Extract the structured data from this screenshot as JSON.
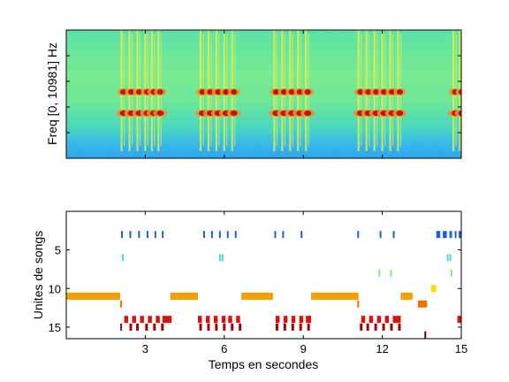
{
  "chart_data": [
    {
      "type": "heatmap",
      "ylabel": "Freq [0, 10981] Hz",
      "xlim": [
        0,
        15
      ],
      "ylim": [
        0,
        10981
      ],
      "colormap": "jet",
      "call_bouts": [
        {
          "calls": [
            2.1,
            2.4,
            2.7,
            3.0,
            3.25,
            3.5
          ]
        },
        {
          "calls": [
            5.1,
            5.4,
            5.7,
            6.0,
            6.3
          ]
        },
        {
          "calls": [
            7.9,
            8.2,
            8.5,
            8.8,
            9.1
          ]
        },
        {
          "calls": [
            11.1,
            11.4,
            11.7,
            12.0,
            12.3,
            12.6
          ]
        },
        {
          "calls": [
            14.7,
            14.95
          ]
        }
      ]
    },
    {
      "type": "scatter",
      "xlabel": "Temps en secondes",
      "ylabel": "Unites de songs",
      "xlim": [
        0,
        15
      ],
      "ylim": [
        0,
        16.5
      ],
      "xticks": [
        "3",
        "6",
        "9",
        "12",
        "15"
      ],
      "yticks": [
        "5",
        "10",
        "15"
      ],
      "rows": [
        {
          "unit": 3,
          "color": "#1f5fdc",
          "segments": [
            [
              2.08,
              2.13
            ],
            [
              2.4,
              2.45
            ],
            [
              2.73,
              2.78
            ],
            [
              3.05,
              3.1
            ],
            [
              3.35,
              3.4
            ],
            [
              3.63,
              3.68
            ],
            [
              5.2,
              5.25
            ],
            [
              5.5,
              5.55
            ],
            [
              5.8,
              5.85
            ],
            [
              6.1,
              6.15
            ],
            [
              6.4,
              6.45
            ],
            [
              7.9,
              7.95
            ],
            [
              8.2,
              8.25
            ],
            [
              8.9,
              8.95
            ],
            [
              11.05,
              11.1
            ],
            [
              11.9,
              11.95
            ],
            [
              12.4,
              12.45
            ],
            [
              14.05,
              14.2
            ],
            [
              14.3,
              14.45
            ],
            [
              14.55,
              14.65
            ],
            [
              14.75,
              14.8
            ],
            [
              14.9,
              15.0
            ]
          ]
        },
        {
          "unit": 6,
          "color": "#40e0d0",
          "segments": [
            [
              2.12,
              2.18
            ],
            [
              5.8,
              5.85
            ],
            [
              5.9,
              5.95
            ],
            [
              14.45,
              14.5
            ],
            [
              14.55,
              14.6
            ]
          ]
        },
        {
          "unit": 8,
          "color": "#80f080",
          "segments": [
            [
              11.85,
              11.92
            ],
            [
              12.3,
              12.37
            ],
            [
              14.6,
              14.66
            ]
          ]
        },
        {
          "unit": 10,
          "color": "#f5e000",
          "segments": [
            [
              13.85,
              14.05
            ]
          ]
        },
        {
          "unit": 11,
          "color": "#f5a000",
          "segments": [
            [
              0.0,
              2.05
            ],
            [
              3.95,
              5.0
            ],
            [
              6.65,
              7.85
            ],
            [
              9.3,
              11.1
            ],
            [
              12.7,
              13.15
            ]
          ]
        },
        {
          "unit": 12,
          "color": "#f07000",
          "segments": [
            [
              2.05,
              2.1
            ],
            [
              11.05,
              11.1
            ],
            [
              13.35,
              13.7
            ]
          ]
        },
        {
          "unit": 14,
          "color": "#dd1010",
          "segments": [
            [
              2.2,
              2.35
            ],
            [
              2.5,
              2.65
            ],
            [
              2.8,
              2.95
            ],
            [
              3.1,
              3.25
            ],
            [
              3.4,
              3.55
            ],
            [
              3.65,
              4.0
            ],
            [
              5.0,
              5.15
            ],
            [
              5.3,
              5.45
            ],
            [
              5.6,
              5.75
            ],
            [
              5.9,
              6.05
            ],
            [
              6.15,
              6.3
            ],
            [
              6.45,
              6.6
            ],
            [
              7.95,
              8.1
            ],
            [
              8.25,
              8.4
            ],
            [
              8.55,
              8.7
            ],
            [
              8.85,
              9.0
            ],
            [
              9.1,
              9.3
            ],
            [
              11.2,
              11.35
            ],
            [
              11.5,
              11.65
            ],
            [
              11.8,
              11.95
            ],
            [
              12.1,
              12.25
            ],
            [
              12.4,
              12.7
            ],
            [
              14.85,
              15.0
            ]
          ]
        },
        {
          "unit": 15,
          "color": "#a80000",
          "segments": [
            [
              2.05,
              2.1
            ],
            [
              2.4,
              2.5
            ],
            [
              2.65,
              2.75
            ],
            [
              3.0,
              3.1
            ],
            [
              3.3,
              3.4
            ],
            [
              3.6,
              3.7
            ],
            [
              5.05,
              5.15
            ],
            [
              5.35,
              5.45
            ],
            [
              5.65,
              5.75
            ],
            [
              5.95,
              6.05
            ],
            [
              6.25,
              6.35
            ],
            [
              6.55,
              6.65
            ],
            [
              7.95,
              8.05
            ],
            [
              8.25,
              8.35
            ],
            [
              8.55,
              8.65
            ],
            [
              8.85,
              8.95
            ],
            [
              9.15,
              9.25
            ],
            [
              11.15,
              11.25
            ],
            [
              11.4,
              11.5
            ],
            [
              11.7,
              11.8
            ],
            [
              12.0,
              12.1
            ],
            [
              12.3,
              12.4
            ],
            [
              12.6,
              12.7
            ]
          ]
        },
        {
          "unit": 16,
          "color": "#700000",
          "segments": [
            [
              13.6,
              13.65
            ]
          ]
        }
      ]
    }
  ]
}
